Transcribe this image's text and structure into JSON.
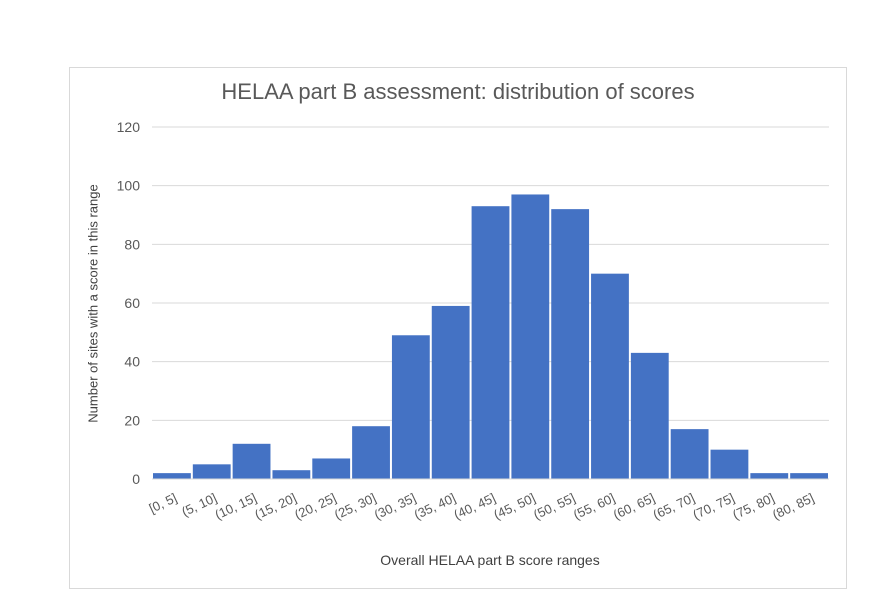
{
  "chart_data": {
    "type": "bar",
    "title": "HELAA part B assessment:  distribution of scores",
    "xlabel": "Overall HELAA part B score ranges",
    "ylabel": "Number of sites with a score in this range",
    "ylim": [
      0,
      120
    ],
    "yticks": [
      0,
      20,
      40,
      60,
      80,
      100,
      120
    ],
    "grid": true,
    "legend": null,
    "bar_color": "#4472c4",
    "categories": [
      "[0, 5]",
      "(5, 10]",
      "(10, 15]",
      "(15, 20]",
      "(20, 25]",
      "(25, 30]",
      "(30, 35]",
      "(35, 40]",
      "(40, 45]",
      "(45, 50]",
      "(50, 55]",
      "(55, 60]",
      "(60, 65]",
      "(65, 70]",
      "(70, 75]",
      "(75, 80]",
      "(80, 85]"
    ],
    "values": [
      2,
      5,
      12,
      3,
      7,
      18,
      49,
      59,
      93,
      97,
      92,
      70,
      43,
      17,
      10,
      2,
      2
    ]
  }
}
